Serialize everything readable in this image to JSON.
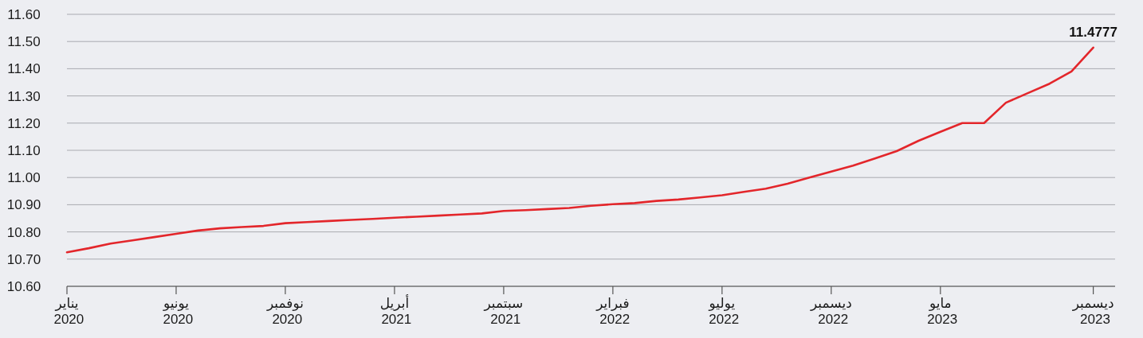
{
  "chart_data": {
    "type": "line",
    "x": [
      "2020-01",
      "2020-02",
      "2020-03",
      "2020-04",
      "2020-05",
      "2020-06",
      "2020-07",
      "2020-08",
      "2020-09",
      "2020-10",
      "2020-11",
      "2020-12",
      "2021-01",
      "2021-02",
      "2021-03",
      "2021-04",
      "2021-05",
      "2021-06",
      "2021-07",
      "2021-08",
      "2021-09",
      "2021-10",
      "2021-11",
      "2021-12",
      "2022-01",
      "2022-02",
      "2022-03",
      "2022-04",
      "2022-05",
      "2022-06",
      "2022-07",
      "2022-08",
      "2022-09",
      "2022-10",
      "2022-11",
      "2022-12",
      "2023-01",
      "2023-02",
      "2023-03",
      "2023-04",
      "2023-05",
      "2023-06",
      "2023-07",
      "2023-08",
      "2023-09",
      "2023-10",
      "2023-11",
      "2023-12"
    ],
    "series": [
      {
        "color": "#e3262b",
        "values": [
          10.725,
          10.74,
          10.757,
          10.769,
          10.781,
          10.793,
          10.805,
          10.813,
          10.818,
          10.822,
          10.832,
          10.836,
          10.84,
          10.844,
          10.848,
          10.852,
          10.856,
          10.86,
          10.864,
          10.868,
          10.877,
          10.88,
          10.884,
          10.888,
          10.896,
          10.902,
          10.906,
          10.914,
          10.919,
          10.927,
          10.935,
          10.947,
          10.959,
          10.977,
          11.0,
          11.022,
          11.044,
          11.07,
          11.097,
          11.135,
          11.168,
          11.2,
          11.2,
          11.275,
          11.31,
          11.345,
          11.39,
          11.4777
        ]
      }
    ],
    "xlim": [
      "2020-01",
      "2024-01"
    ],
    "xticks": [
      {
        "value": "2020-01",
        "label": "يناير 2020"
      },
      {
        "value": "2020-06",
        "label": "يونيو 2020"
      },
      {
        "value": "2020-11",
        "label": "نوفمبر 2020"
      },
      {
        "value": "2021-04",
        "label": "أبريل 2021"
      },
      {
        "value": "2021-09",
        "label": "سبتمبر 2021"
      },
      {
        "value": "2022-02",
        "label": "فبراير 2022"
      },
      {
        "value": "2022-07",
        "label": "يوليو 2022"
      },
      {
        "value": "2022-12",
        "label": "ديسمبر 2022"
      },
      {
        "value": "2023-05",
        "label": "مايو 2023"
      },
      {
        "value": "2023-12",
        "label": "ديسمبر 2023"
      }
    ],
    "ylim": [
      10.6,
      11.6
    ],
    "yticks": [
      {
        "value": 10.6,
        "label": "10.60"
      },
      {
        "value": 10.7,
        "label": "10.70"
      },
      {
        "value": 10.8,
        "label": "10.80"
      },
      {
        "value": 10.9,
        "label": "10.90"
      },
      {
        "value": 11.0,
        "label": "11.00"
      },
      {
        "value": 11.1,
        "label": "11.10"
      },
      {
        "value": 11.2,
        "label": "11.20"
      },
      {
        "value": 11.3,
        "label": "11.30"
      },
      {
        "value": 11.4,
        "label": "11.40"
      },
      {
        "value": 11.5,
        "label": "11.50"
      },
      {
        "value": 11.6,
        "label": "11.60"
      }
    ],
    "grid": "y",
    "annotations": [
      {
        "text": "11.4777",
        "x": "2023-12",
        "y": 11.4777
      }
    ]
  }
}
